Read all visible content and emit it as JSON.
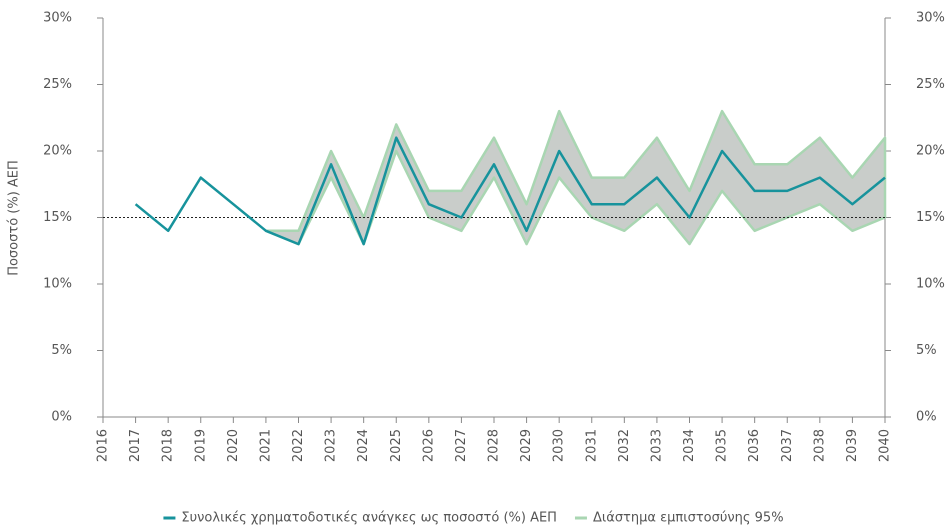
{
  "chart_data": {
    "type": "line",
    "y_label": "Ποσοστό (%) ΑΕΠ",
    "x": [
      2017,
      2018,
      2019,
      2020,
      2021,
      2022,
      2023,
      2024,
      2025,
      2026,
      2027,
      2028,
      2029,
      2030,
      2031,
      2032,
      2033,
      2034,
      2035,
      2036,
      2037,
      2038,
      2039,
      2040
    ],
    "series": [
      {
        "name": "Συνολικές χρηματοδοτικές ανάγκες ως ποσοστό (%) ΑΕΠ",
        "color": "#17939c",
        "values": [
          16,
          14,
          18,
          16,
          14,
          13,
          19,
          13,
          21,
          16,
          15,
          19,
          14,
          20,
          16,
          16,
          18,
          15,
          20,
          17,
          17,
          18,
          16,
          18
        ]
      }
    ],
    "band": {
      "name": "Διάστημα εμπιστοσύνης 95%",
      "color": "#a9d6b2",
      "fill": "#c9cdca",
      "lower": [
        null,
        null,
        null,
        null,
        14,
        13,
        18,
        13,
        20,
        15,
        14,
        18,
        13,
        18,
        15,
        14,
        16,
        13,
        17,
        14,
        15,
        16,
        14,
        15
      ],
      "upper": [
        null,
        null,
        null,
        null,
        14,
        14,
        20,
        15,
        22,
        17,
        17,
        21,
        16,
        23,
        18,
        18,
        21,
        17,
        23,
        19,
        19,
        21,
        18,
        21
      ]
    },
    "reference_line": 15,
    "xlim": [
      2016,
      2040
    ],
    "xticks": [
      2016,
      2017,
      2018,
      2019,
      2020,
      2021,
      2022,
      2023,
      2024,
      2025,
      2026,
      2027,
      2028,
      2029,
      2030,
      2031,
      2032,
      2033,
      2034,
      2035,
      2036,
      2037,
      2038,
      2039,
      2040
    ],
    "ylim": [
      0,
      30
    ],
    "yticks": [
      {
        "value": 0,
        "label": "0%"
      },
      {
        "value": 5,
        "label": "5%"
      },
      {
        "value": 10,
        "label": "10%"
      },
      {
        "value": 15,
        "label": "15%"
      },
      {
        "value": 20,
        "label": "20%"
      },
      {
        "value": 25,
        "label": "25%"
      },
      {
        "value": 30,
        "label": "30%"
      }
    ],
    "y2lim": [
      0,
      30
    ],
    "y2ticks": [
      {
        "value": 0,
        "label": "0%"
      },
      {
        "value": 5,
        "label": "5%"
      },
      {
        "value": 10,
        "label": "10%"
      },
      {
        "value": 15,
        "label": "15%"
      },
      {
        "value": 20,
        "label": "20%"
      },
      {
        "value": 25,
        "label": "25%"
      },
      {
        "value": 30,
        "label": "30%"
      }
    ]
  }
}
